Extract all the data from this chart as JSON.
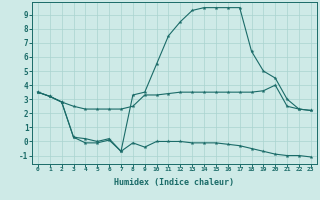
{
  "xlabel": "Humidex (Indice chaleur)",
  "xlim": [
    -0.5,
    23.5
  ],
  "ylim": [
    -1.6,
    9.9
  ],
  "xticks": [
    0,
    1,
    2,
    3,
    4,
    5,
    6,
    7,
    8,
    9,
    10,
    11,
    12,
    13,
    14,
    15,
    16,
    17,
    18,
    19,
    20,
    21,
    22,
    23
  ],
  "yticks": [
    -1,
    0,
    1,
    2,
    3,
    4,
    5,
    6,
    7,
    8,
    9
  ],
  "bg_color": "#ceeae7",
  "line_color": "#1a6b68",
  "grid_color": "#aad4d0",
  "series": [
    {
      "x": [
        0,
        1,
        2,
        3,
        4,
        5,
        6,
        7,
        8,
        9,
        10,
        11,
        12,
        13,
        14,
        15,
        16,
        17,
        18,
        19,
        20,
        21,
        22,
        23
      ],
      "y": [
        3.5,
        3.2,
        2.8,
        2.5,
        2.3,
        2.3,
        2.3,
        2.3,
        2.5,
        3.3,
        3.3,
        3.4,
        3.5,
        3.5,
        3.5,
        3.5,
        3.5,
        3.5,
        3.5,
        3.6,
        4.0,
        2.5,
        2.3,
        2.2
      ]
    },
    {
      "x": [
        0,
        1,
        2,
        3,
        4,
        5,
        6,
        7,
        8,
        9,
        10,
        11,
        12,
        13,
        14,
        15,
        16,
        17,
        18,
        19,
        20,
        21,
        22,
        23
      ],
      "y": [
        3.5,
        3.2,
        2.8,
        0.3,
        0.2,
        0.0,
        0.2,
        -0.7,
        3.3,
        3.5,
        5.5,
        7.5,
        8.5,
        9.3,
        9.5,
        9.5,
        9.5,
        9.5,
        6.4,
        5.0,
        4.5,
        3.0,
        2.3,
        2.2
      ]
    },
    {
      "x": [
        0,
        1,
        2,
        3,
        4,
        5,
        6,
        7,
        8,
        9,
        10,
        11,
        12,
        13,
        14,
        15,
        16,
        17,
        18,
        19,
        20,
        21,
        22,
        23
      ],
      "y": [
        3.5,
        3.2,
        2.8,
        0.3,
        -0.1,
        -0.1,
        0.1,
        -0.7,
        -0.1,
        -0.4,
        0.0,
        0.0,
        0.0,
        -0.1,
        -0.1,
        -0.1,
        -0.2,
        -0.3,
        -0.5,
        -0.7,
        -0.9,
        -1.0,
        -1.0,
        -1.1
      ]
    }
  ]
}
